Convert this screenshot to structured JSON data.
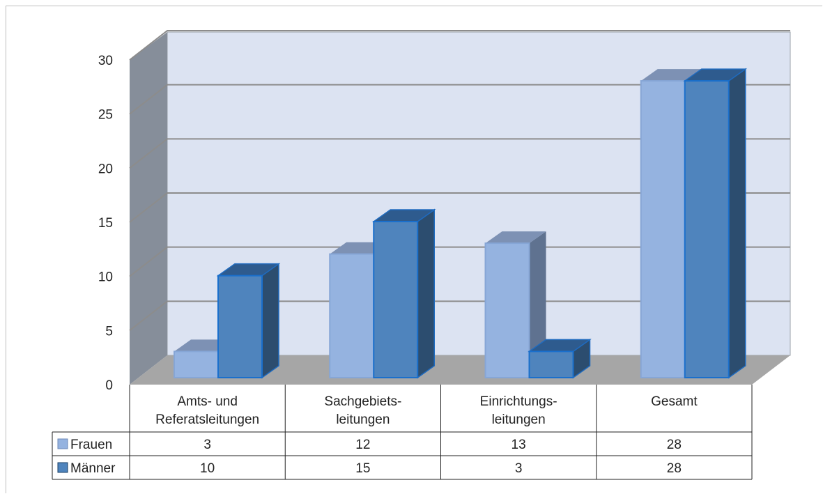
{
  "chart_data": {
    "type": "bar",
    "categories": [
      [
        "Amts- und",
        "Referatsleitungen"
      ],
      [
        "Sachgebiets-",
        "leitungen"
      ],
      [
        "Einrichtungs-",
        "leitungen"
      ],
      [
        "Gesamt"
      ]
    ],
    "series": [
      {
        "name": "Frauen",
        "values": [
          3,
          12,
          13,
          28
        ],
        "color": "#95b3e0",
        "top": "#7d91b4",
        "side": "#5f7290"
      },
      {
        "name": "Männer",
        "values": [
          10,
          15,
          3,
          28
        ],
        "color": "#4f84bd",
        "top": "#2e5b8e",
        "side": "#2c4d6f"
      }
    ],
    "yticks": [
      0,
      5,
      10,
      15,
      20,
      25,
      30
    ],
    "ylim": [
      0,
      30
    ],
    "grid": true,
    "legend": "data-table",
    "wall_color": "#dce3f2",
    "floor_color": "#a6a6a6",
    "side_wall_color": "#868e9a"
  }
}
